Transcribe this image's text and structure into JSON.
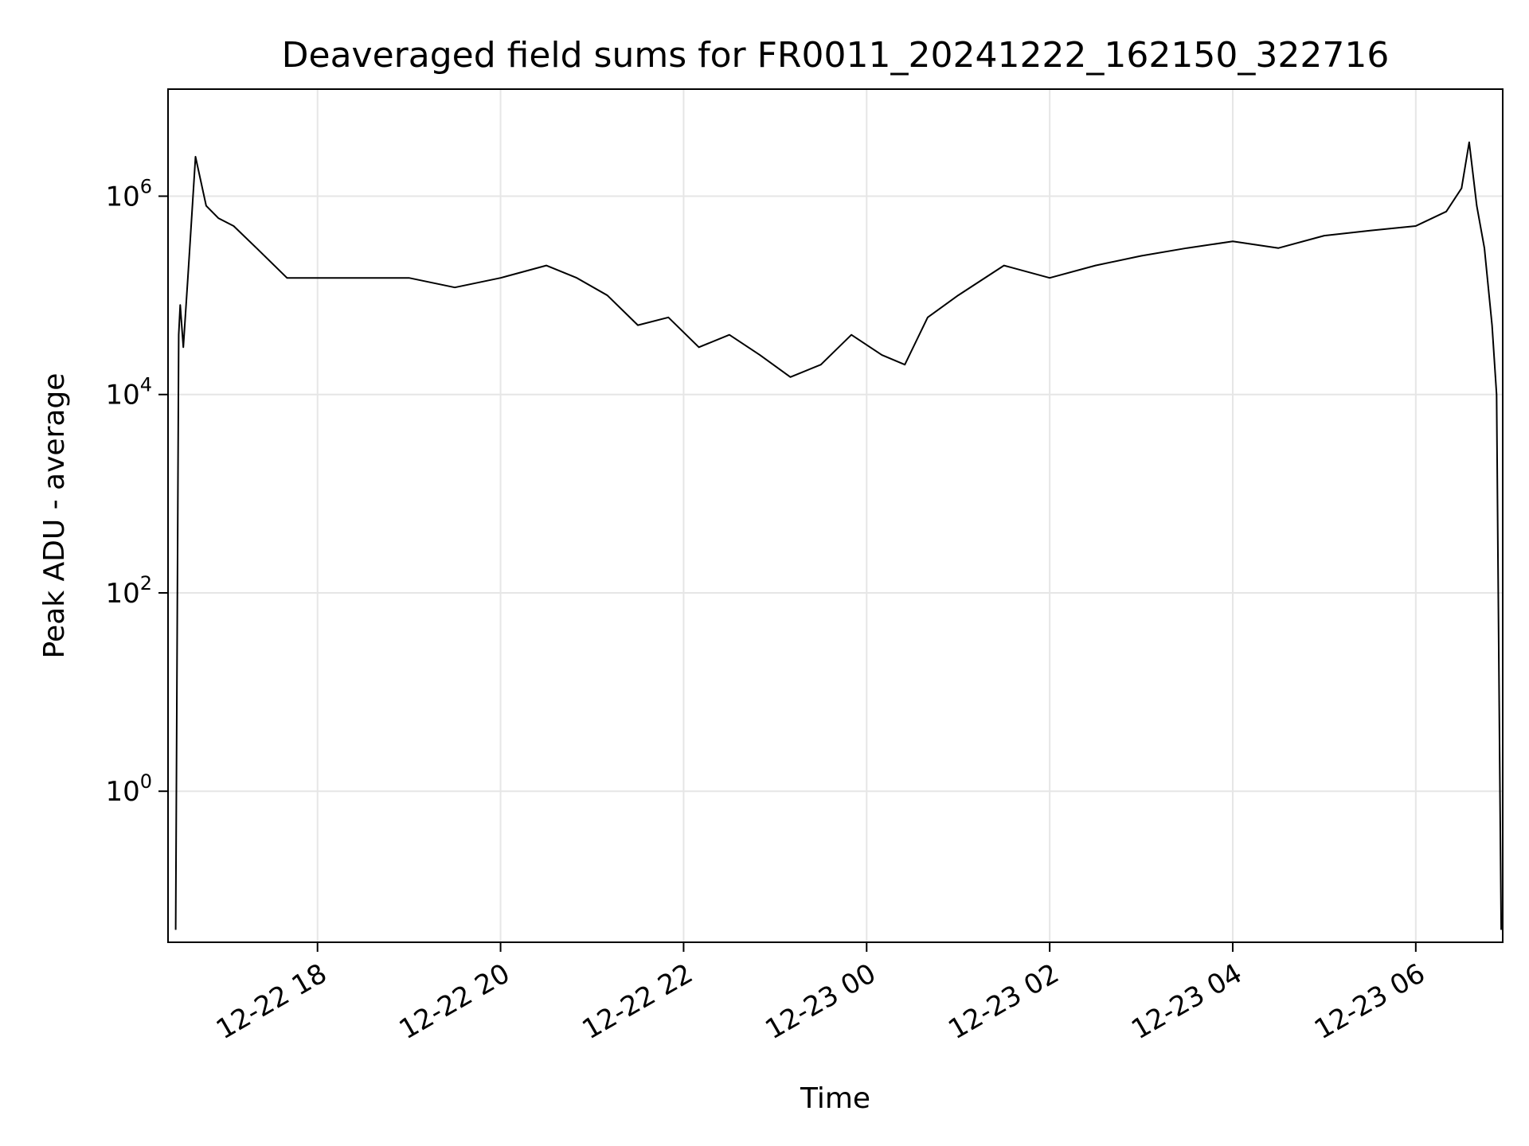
{
  "chart_data": {
    "type": "line",
    "title": "Deaveraged field sums for FR0011_20241222_162150_322716",
    "xlabel": "Time",
    "ylabel": "Peak ADU - average",
    "yscale": "log",
    "grid": true,
    "line_color": "#000000",
    "grid_color": "#e6e6e6",
    "xlim": [
      "2024-12-22 16:22",
      "2024-12-23 06:57"
    ],
    "ylim": [
      0.03,
      12000000
    ],
    "x_ticks": [
      {
        "value": "2024-12-22 18:00",
        "label": "12-22 18"
      },
      {
        "value": "2024-12-22 20:00",
        "label": "12-22 20"
      },
      {
        "value": "2024-12-22 22:00",
        "label": "12-22 22"
      },
      {
        "value": "2024-12-23 00:00",
        "label": "12-23 00"
      },
      {
        "value": "2024-12-23 02:00",
        "label": "12-23 02"
      },
      {
        "value": "2024-12-23 04:00",
        "label": "12-23 04"
      },
      {
        "value": "2024-12-23 06:00",
        "label": "12-23 06"
      }
    ],
    "y_ticks": [
      {
        "value": 1,
        "base": "10",
        "exp": "0"
      },
      {
        "value": 100,
        "base": "10",
        "exp": "2"
      },
      {
        "value": 10000,
        "base": "10",
        "exp": "4"
      },
      {
        "value": 1000000,
        "base": "10",
        "exp": "6"
      }
    ],
    "series": [
      {
        "x": [
          "2024-12-22 16:27",
          "2024-12-22 16:29",
          "2024-12-22 16:30",
          "2024-12-22 16:32",
          "2024-12-22 16:35",
          "2024-12-22 16:40",
          "2024-12-22 16:47",
          "2024-12-22 16:55",
          "2024-12-22 17:05",
          "2024-12-22 17:20",
          "2024-12-22 17:40",
          "2024-12-22 18:00",
          "2024-12-22 18:30",
          "2024-12-22 19:00",
          "2024-12-22 19:30",
          "2024-12-22 20:00",
          "2024-12-22 20:30",
          "2024-12-22 20:50",
          "2024-12-22 21:10",
          "2024-12-22 21:30",
          "2024-12-22 21:50",
          "2024-12-22 22:10",
          "2024-12-22 22:30",
          "2024-12-22 22:50",
          "2024-12-22 23:10",
          "2024-12-22 23:30",
          "2024-12-22 23:50",
          "2024-12-23 00:10",
          "2024-12-23 00:25",
          "2024-12-23 00:40",
          "2024-12-23 01:00",
          "2024-12-23 01:30",
          "2024-12-23 02:00",
          "2024-12-23 02:30",
          "2024-12-23 03:00",
          "2024-12-23 03:30",
          "2024-12-23 04:00",
          "2024-12-23 04:30",
          "2024-12-23 05:00",
          "2024-12-23 05:30",
          "2024-12-23 06:00",
          "2024-12-23 06:20",
          "2024-12-23 06:30",
          "2024-12-23 06:35",
          "2024-12-23 06:40",
          "2024-12-23 06:45",
          "2024-12-23 06:50",
          "2024-12-23 06:53",
          "2024-12-23 06:55",
          "2024-12-23 06:56"
        ],
        "y": [
          0.04,
          40000,
          80000,
          30000,
          150000,
          2500000,
          800000,
          600000,
          500000,
          300000,
          150000,
          150000,
          150000,
          150000,
          120000,
          150000,
          200000,
          150000,
          100000,
          50000,
          60000,
          30000,
          40000,
          25000,
          15000,
          20000,
          40000,
          25000,
          20000,
          60000,
          100000,
          200000,
          150000,
          200000,
          250000,
          300000,
          350000,
          300000,
          400000,
          450000,
          500000,
          700000,
          1200000,
          3500000,
          800000,
          300000,
          50000,
          10000,
          2,
          0.04
        ]
      }
    ]
  }
}
